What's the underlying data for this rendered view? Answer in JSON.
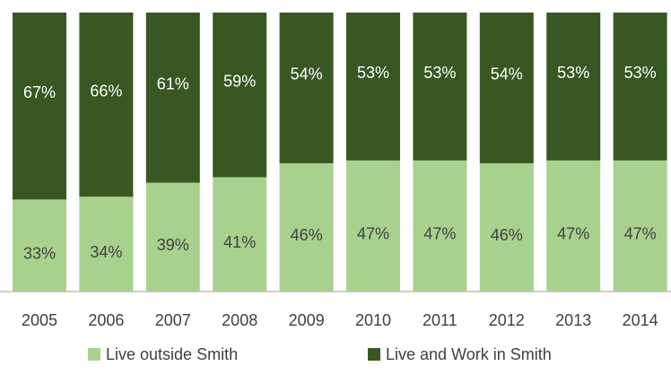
{
  "chart_data": {
    "type": "stacked_bar",
    "categories": [
      "2005",
      "2006",
      "2007",
      "2008",
      "2009",
      "2010",
      "2011",
      "2012",
      "2013",
      "2014"
    ],
    "series": [
      {
        "name": "Live outside Smith",
        "color": "#a9d18e",
        "values": [
          33,
          34,
          39,
          41,
          46,
          47,
          47,
          46,
          47,
          47
        ],
        "value_labels": [
          "33%",
          "34%",
          "39%",
          "41%",
          "46%",
          "47%",
          "47%",
          "46%",
          "47%",
          "47%"
        ]
      },
      {
        "name": "Live and Work in Smith",
        "color": "#385723",
        "values": [
          67,
          66,
          61,
          59,
          54,
          53,
          53,
          54,
          53,
          53
        ],
        "value_labels": [
          "67%",
          "66%",
          "61%",
          "59%",
          "54%",
          "53%",
          "53%",
          "54%",
          "53%",
          "53%"
        ]
      }
    ],
    "ylim": [
      0,
      100
    ],
    "legend": "bottom"
  }
}
